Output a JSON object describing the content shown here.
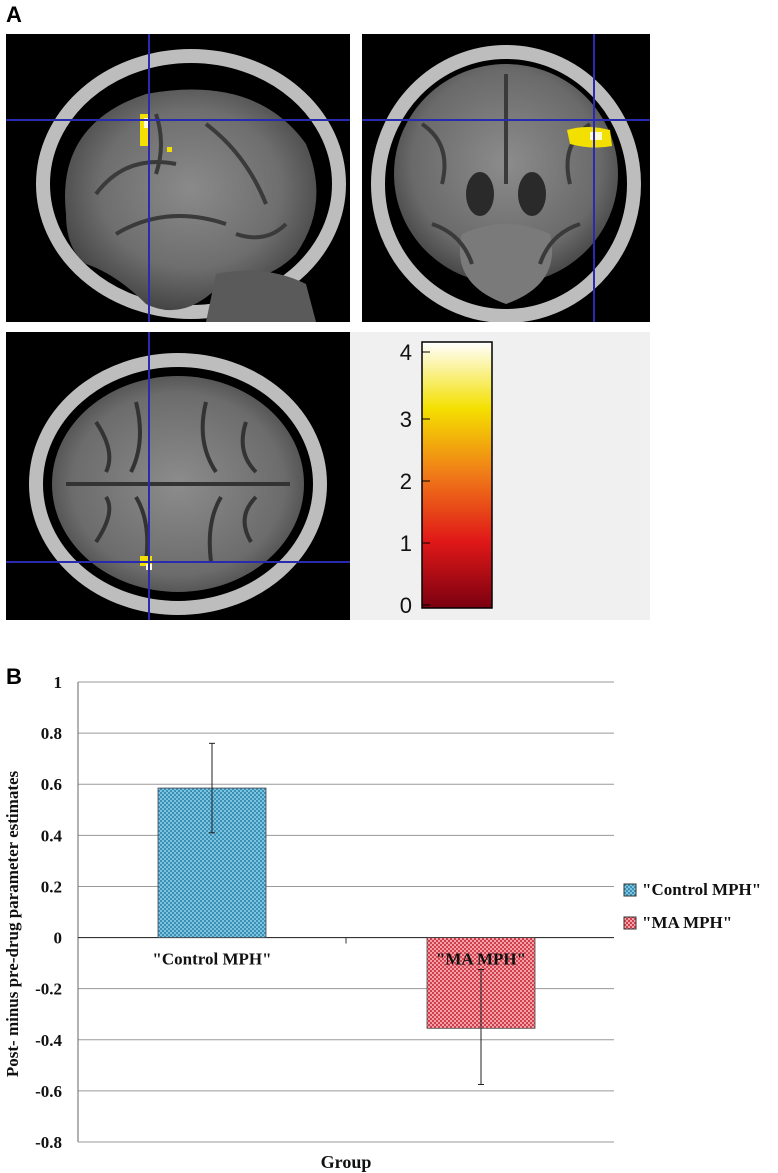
{
  "panels": {
    "a_label": "A",
    "b_label": "B"
  },
  "colorbar": {
    "ticks": [
      "4",
      "3",
      "2",
      "1",
      "0"
    ]
  },
  "chart_data": {
    "type": "bar",
    "categories": [
      "\"Control MPH\"",
      "\"MA MPH\""
    ],
    "values": [
      0.585,
      -0.355
    ],
    "error_low": [
      0.41,
      -0.575
    ],
    "error_high": [
      0.76,
      -0.125
    ],
    "colors": [
      "#6ab8d6",
      "#e0707a"
    ],
    "xlabel": "Group",
    "ylabel": "Post- minus pre-drug parameter estimates",
    "ylim": [
      -0.8,
      1
    ],
    "yticks": [
      "1",
      "0.8",
      "0.6",
      "0.4",
      "0.2",
      "0",
      "-0.2",
      "-0.4",
      "-0.6",
      "-0.8"
    ],
    "grid": true,
    "legend": {
      "position": "right",
      "entries": [
        "\"Control MPH\"",
        "\"MA MPH\""
      ]
    }
  }
}
